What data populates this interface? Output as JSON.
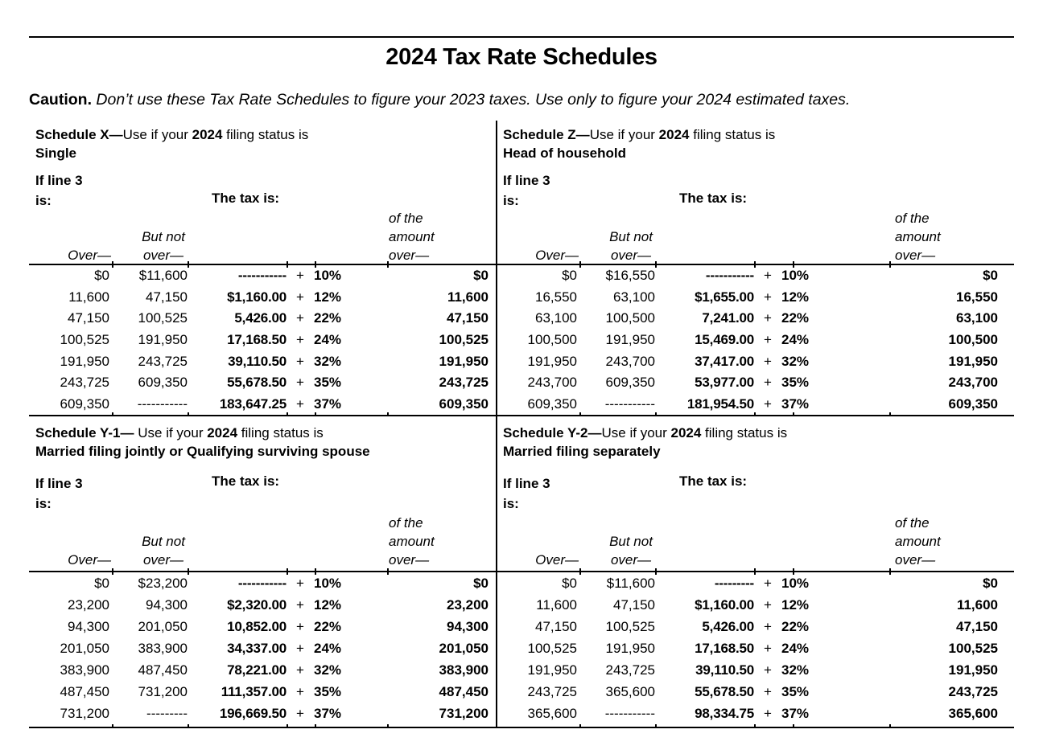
{
  "page": {
    "title": "2024 Tax Rate Schedules",
    "caution_label": "Caution.",
    "caution_text": " Don’t use these Tax Rate Schedules to figure your 2023 taxes. Use only to figure your 2024 estimated taxes."
  },
  "common": {
    "if_line_3": "If line 3",
    "is_label": "is:",
    "the_tax_is": "The tax is:",
    "over_dash": "Over—",
    "but_not": "But not",
    "over_lower": "over—",
    "of_the": "of the",
    "amount": "amount",
    "plus": "+"
  },
  "schedules": [
    {
      "id": "X",
      "title_bold": "Schedule X—",
      "title_mid": "Use if your ",
      "title_year": "2024",
      "title_suffix": " filing status is",
      "status": "Single",
      "rows": [
        {
          "over": "$0",
          "but_not": "$11,600",
          "tax": "-----------",
          "rate": "10%",
          "excess": "$0"
        },
        {
          "over": "11,600",
          "but_not": "47,150",
          "tax": "$1,160.00",
          "rate": "12%",
          "excess": "11,600"
        },
        {
          "over": "47,150",
          "but_not": "100,525",
          "tax": "5,426.00",
          "rate": "22%",
          "excess": "47,150"
        },
        {
          "over": "100,525",
          "but_not": "191,950",
          "tax": "17,168.50",
          "rate": "24%",
          "excess": "100,525"
        },
        {
          "over": "191,950",
          "but_not": "243,725",
          "tax": "39,110.50",
          "rate": "32%",
          "excess": "191,950"
        },
        {
          "over": "243,725",
          "but_not": "609,350",
          "tax": "55,678.50",
          "rate": "35%",
          "excess": "243,725"
        },
        {
          "over": "609,350",
          "but_not": "-----------",
          "tax": "183,647.25",
          "rate": "37%",
          "excess": "609,350"
        }
      ]
    },
    {
      "id": "Z",
      "title_bold": "Schedule Z—",
      "title_mid": "Use if your ",
      "title_year": "2024",
      "title_suffix": " filing status is",
      "status": "Head of household",
      "rows": [
        {
          "over": "$0",
          "but_not": "$16,550",
          "tax": "-----------",
          "rate": "10%",
          "excess": "$0"
        },
        {
          "over": "16,550",
          "but_not": "63,100",
          "tax": "$1,655.00",
          "rate": "12%",
          "excess": "16,550"
        },
        {
          "over": "63,100",
          "but_not": "100,500",
          "tax": "7,241.00",
          "rate": "22%",
          "excess": "63,100"
        },
        {
          "over": "100,500",
          "but_not": "191,950",
          "tax": "15,469.00",
          "rate": "24%",
          "excess": "100,500"
        },
        {
          "over": "191,950",
          "but_not": "243,700",
          "tax": "37,417.00",
          "rate": "32%",
          "excess": "191,950"
        },
        {
          "over": "243,700",
          "but_not": "609,350",
          "tax": "53,977.00",
          "rate": "35%",
          "excess": "243,700"
        },
        {
          "over": "609,350",
          "but_not": "-----------",
          "tax": "181,954.50",
          "rate": "37%",
          "excess": "609,350"
        }
      ]
    },
    {
      "id": "Y-1",
      "title_bold": "Schedule Y-1—",
      "title_mid": " Use if your ",
      "title_year": "2024",
      "title_suffix": " filing status is",
      "status": "Married filing jointly or Qualifying surviving spouse",
      "rows": [
        {
          "over": "$0",
          "but_not": "$23,200",
          "tax": "-----------",
          "rate": "10%",
          "excess": "$0"
        },
        {
          "over": "23,200",
          "but_not": "94,300",
          "tax": "$2,320.00",
          "rate": "12%",
          "excess": "23,200"
        },
        {
          "over": "94,300",
          "but_not": "201,050",
          "tax": "10,852.00",
          "rate": "22%",
          "excess": "94,300"
        },
        {
          "over": "201,050",
          "but_not": "383,900",
          "tax": "34,337.00",
          "rate": "24%",
          "excess": "201,050"
        },
        {
          "over": "383,900",
          "but_not": "487,450",
          "tax": "78,221.00",
          "rate": "32%",
          "excess": "383,900"
        },
        {
          "over": "487,450",
          "but_not": "731,200",
          "tax": "111,357.00",
          "rate": "35%",
          "excess": "487,450"
        },
        {
          "over": "731,200",
          "but_not": "---------",
          "tax": "196,669.50",
          "rate": "37%",
          "excess": "731,200"
        }
      ]
    },
    {
      "id": "Y-2",
      "title_bold": "Schedule Y-2—",
      "title_mid": "Use if your ",
      "title_year": "2024",
      "title_suffix": " filing status is",
      "status": "Married filing separately",
      "rows": [
        {
          "over": "$0",
          "but_not": "$11,600",
          "tax": "---------",
          "rate": "10%",
          "excess": "$0"
        },
        {
          "over": "11,600",
          "but_not": "47,150",
          "tax": "$1,160.00",
          "rate": "12%",
          "excess": "11,600"
        },
        {
          "over": "47,150",
          "but_not": "100,525",
          "tax": "5,426.00",
          "rate": "22%",
          "excess": "47,150"
        },
        {
          "over": "100,525",
          "but_not": "191,950",
          "tax": "17,168.50",
          "rate": "24%",
          "excess": "100,525"
        },
        {
          "over": "191,950",
          "but_not": "243,725",
          "tax": "39,110.50",
          "rate": "32%",
          "excess": "191,950"
        },
        {
          "over": "243,725",
          "but_not": "365,600",
          "tax": "55,678.50",
          "rate": "35%",
          "excess": "243,725"
        },
        {
          "over": "365,600",
          "but_not": "-----------",
          "tax": "98,334.75",
          "rate": "37%",
          "excess": "365,600"
        }
      ]
    }
  ]
}
